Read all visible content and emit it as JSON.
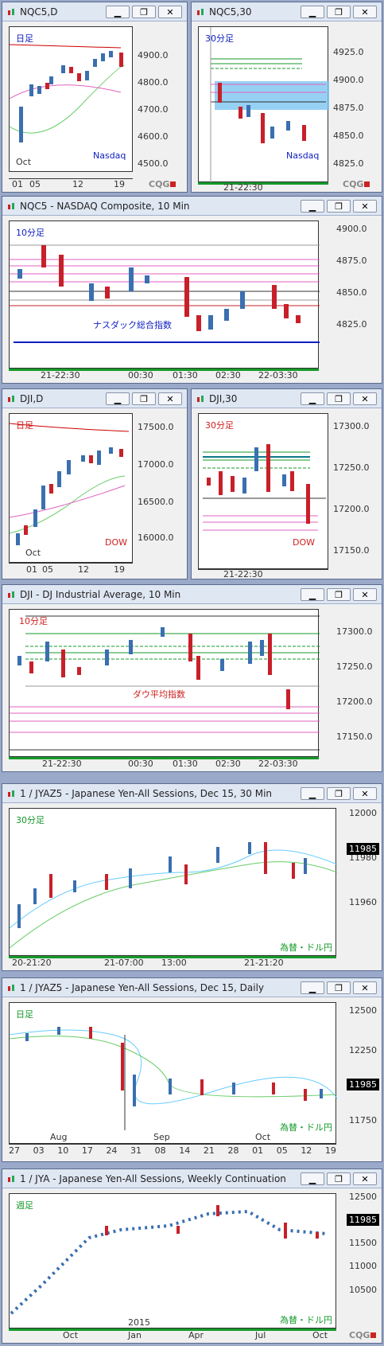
{
  "windows": {
    "nq_daily": {
      "title": "NQC5,D",
      "label": "日足",
      "sublabel": "Nasdaq",
      "y_ticks": [
        "4900.0",
        "4800.0",
        "4700.0",
        "4600.0",
        "4500.0"
      ],
      "x_ticks": [
        "01",
        "05",
        "12",
        "19"
      ],
      "month": "Oct"
    },
    "nq_30": {
      "title": "NQC5,30",
      "label": "30分足",
      "sublabel": "Nasdaq",
      "y_ticks": [
        "4925.0",
        "4900.0",
        "4875.0",
        "4850.0",
        "4825.0"
      ],
      "x_ticks": [
        "21-22:30"
      ]
    },
    "nq_10": {
      "title": "NQC5 - NASDAQ Composite, 10 Min",
      "label": "10分足",
      "sublabel": "ナスダック総合指数",
      "y_ticks": [
        "4900.0",
        "4875.0",
        "4850.0",
        "4825.0"
      ],
      "x_ticks": [
        "21-22:30",
        "00:30",
        "01:30",
        "02:30",
        "22-03:30"
      ]
    },
    "dji_daily": {
      "title": "DJI,D",
      "label": "日足",
      "sublabel": "DOW",
      "y_ticks": [
        "17500.0",
        "17000.0",
        "16500.0",
        "16000.0"
      ],
      "x_ticks": [
        "01",
        "05",
        "12",
        "19"
      ],
      "month": "Oct"
    },
    "dji_30": {
      "title": "DJI,30",
      "label": "30分足",
      "sublabel": "DOW",
      "y_ticks": [
        "17300.0",
        "17250.0",
        "17200.0",
        "17150.0"
      ],
      "x_ticks": [
        "21-22:30"
      ]
    },
    "dji_10": {
      "title": "DJI - DJ Industrial Average, 10 Min",
      "label": "10分足",
      "sublabel": "ダウ平均指数",
      "y_ticks": [
        "17300.0",
        "17250.0",
        "17200.0",
        "17150.0"
      ],
      "x_ticks": [
        "21-22:30",
        "00:30",
        "01:30",
        "02:30",
        "22-03:30"
      ]
    },
    "jy_30": {
      "title": "1 / JYAZ5 - Japanese Yen-All Sessions, Dec 15, 30 Min",
      "label": "30分足",
      "sublabel": "為替・ドル円",
      "y_ticks": [
        "12000",
        "11980",
        "11960"
      ],
      "price": "11985",
      "x_ticks": [
        "20-21:20",
        "21-07:00",
        "13:00",
        "21-21:20"
      ]
    },
    "jy_daily": {
      "title": "1 / JYAZ5 - Japanese Yen-All Sessions, Dec 15, Daily",
      "label": "日足",
      "sublabel": "為替・ドル円",
      "y_ticks": [
        "12500",
        "12250",
        "11750"
      ],
      "price": "11985",
      "x_ticks": [
        "27",
        "03",
        "10",
        "17",
        "24",
        "31",
        "08",
        "14",
        "21",
        "28",
        "01",
        "05",
        "12",
        "19"
      ],
      "months": [
        "Aug",
        "Sep",
        "Oct"
      ]
    },
    "jy_weekly": {
      "title": "1 / JYA - Japanese Yen-All Sessions, Weekly Continuation",
      "label": "週足",
      "sublabel": "為替・ドル円",
      "y_ticks": [
        "12500",
        "11500",
        "11000",
        "10500"
      ],
      "price": "11985",
      "x_ticks": [
        "Oct",
        "Jan",
        "Apr",
        "Jul",
        "Oct"
      ],
      "year": "2015"
    }
  },
  "brand": "CQG",
  "colors": {
    "up": "#3a6fb0",
    "down": "#c8202a",
    "green": "#159a2a",
    "magenta": "#e060c0",
    "blue": "#1020c0",
    "red": "#d02020"
  }
}
